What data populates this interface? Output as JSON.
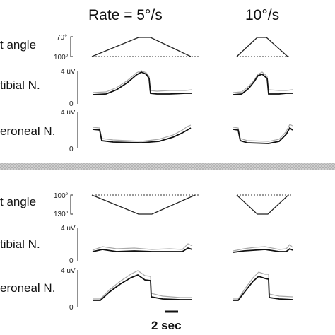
{
  "columns": {
    "left": "Rate = 5°/s",
    "right": "10°/s"
  },
  "panels": [
    {
      "rows": [
        {
          "label": "t angle",
          "ticks": [
            "70°",
            "100°"
          ]
        },
        {
          "label": "tibial N.",
          "ticks": [
            "4 uV",
            "0"
          ]
        },
        {
          "label": "eroneal N.",
          "ticks": [
            "4 uV",
            "0"
          ]
        }
      ]
    },
    {
      "rows": [
        {
          "label": "t angle",
          "ticks": [
            "100°",
            "130°"
          ]
        },
        {
          "label": "tibial N.",
          "ticks": [
            "4 uV",
            "0"
          ]
        },
        {
          "label": "eroneal N.",
          "ticks": [
            "4 uV",
            "0"
          ]
        }
      ]
    }
  ],
  "scale_bar": "2 sec"
}
